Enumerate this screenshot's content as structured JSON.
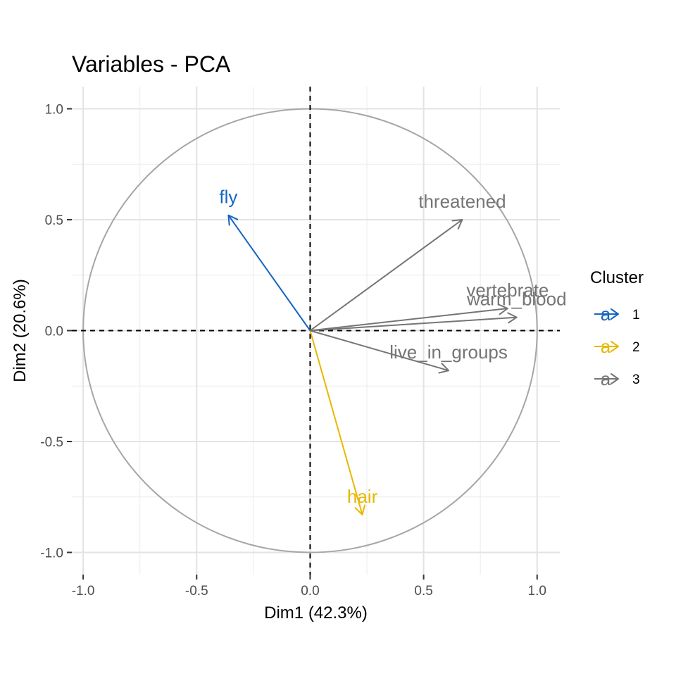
{
  "chart_data": {
    "type": "scatter",
    "subtype": "pca-variable-correlation-circle",
    "title": "Variables - PCA",
    "xlabel": "Dim1 (42.3%)",
    "ylabel": "Dim2 (20.6%)",
    "xlim": [
      -1.05,
      1.1
    ],
    "ylim": [
      -1.1,
      1.1
    ],
    "x_ticks": [
      -1.0,
      -0.5,
      0.0,
      0.5,
      1.0
    ],
    "x_tick_labels": [
      "-1.0",
      "-0.5",
      "0.0",
      "0.5",
      "1.0"
    ],
    "y_ticks": [
      -1.0,
      -0.5,
      0.0,
      0.5,
      1.0
    ],
    "y_tick_labels": [
      "-1.0",
      "-0.5",
      "0.0",
      "0.5",
      "1.0"
    ],
    "grid": true,
    "unit_circle": true,
    "reference_lines": [
      {
        "axis": "x",
        "value": 0,
        "style": "dashed"
      },
      {
        "axis": "y",
        "value": 0,
        "style": "dashed"
      }
    ],
    "legend": {
      "title": "Cluster",
      "position": "right",
      "key_glyph": "a",
      "entries": [
        {
          "label": "1",
          "color": "#1565c0"
        },
        {
          "label": "2",
          "color": "#e7b800"
        },
        {
          "label": "3",
          "color": "#757575"
        }
      ]
    },
    "variables": [
      {
        "name": "fly",
        "x": -0.36,
        "y": 0.52,
        "cluster": "1"
      },
      {
        "name": "hair",
        "x": 0.23,
        "y": -0.83,
        "cluster": "2"
      },
      {
        "name": "threatened",
        "x": 0.67,
        "y": 0.5,
        "cluster": "3"
      },
      {
        "name": "vertebrate",
        "x": 0.87,
        "y": 0.1,
        "cluster": "3"
      },
      {
        "name": "warm_blood",
        "x": 0.91,
        "y": 0.06,
        "cluster": "3"
      },
      {
        "name": "live_in_groups",
        "x": 0.61,
        "y": -0.18,
        "cluster": "3"
      }
    ]
  }
}
